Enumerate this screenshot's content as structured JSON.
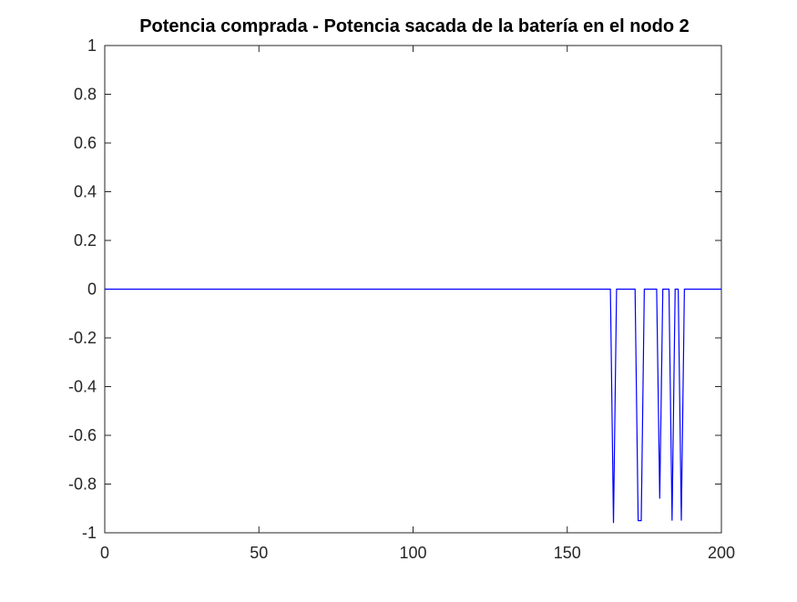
{
  "chart_data": {
    "type": "line",
    "title": "Potencia comprada - Potencia sacada de la batería en el nodo 2",
    "xlabel": "",
    "ylabel": "",
    "xlim": [
      0,
      200
    ],
    "ylim": [
      -1,
      1
    ],
    "xticks": [
      "0",
      "50",
      "100",
      "150",
      "200"
    ],
    "yticks": [
      "-1",
      "-0.8",
      "-0.6",
      "-0.4",
      "-0.2",
      "0",
      "0.2",
      "0.4",
      "0.6",
      "0.8",
      "1"
    ],
    "grid": false,
    "line_color": "#0000ff",
    "series": [
      {
        "x": [
          0,
          164,
          165,
          166,
          167,
          172,
          173,
          174,
          175,
          179,
          180,
          181,
          183,
          184,
          185,
          186,
          187,
          188,
          200
        ],
        "y": [
          0,
          0,
          -0.96,
          0,
          0,
          0,
          -0.95,
          -0.95,
          0,
          0,
          -0.86,
          0,
          0,
          -0.95,
          0,
          0,
          -0.95,
          0,
          0
        ]
      }
    ]
  }
}
